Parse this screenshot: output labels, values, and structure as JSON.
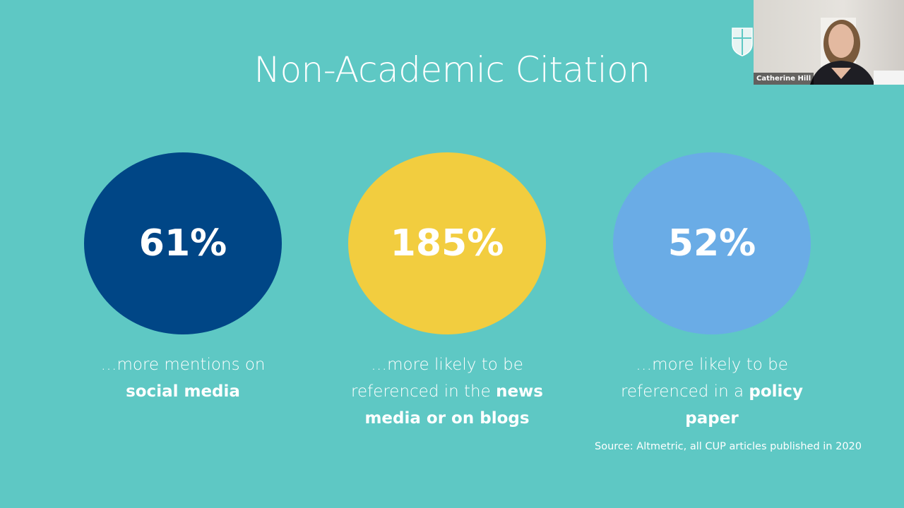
{
  "title": "Non-Academic Citation",
  "stats": [
    {
      "value": "61%",
      "color": "#004686",
      "lead": "…more mentions on",
      "emphasis": "social media"
    },
    {
      "value": "185%",
      "color": "#f2cd3f",
      "lead": "…more likely to be referenced in the",
      "emphasis": "news media or on blogs"
    },
    {
      "value": "52%",
      "color": "#6aace6",
      "lead": "…more likely to be referenced in a",
      "emphasis": "policy paper"
    }
  ],
  "source": "Source: Altmetric, all CUP articles published in 2020",
  "speaker": "Catherine Hill"
}
